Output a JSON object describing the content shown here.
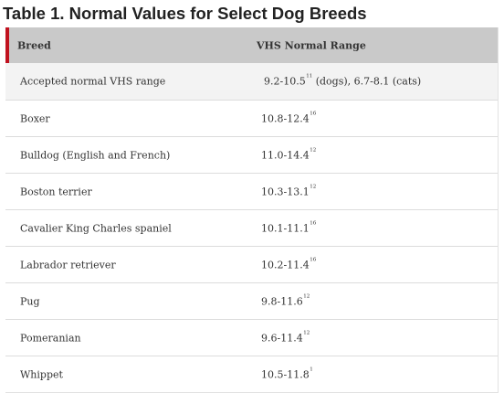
{
  "caption": "Table 1. Normal Values for Select Dog Breeds",
  "headers": {
    "breed": "Breed",
    "range": "VHS Normal Range"
  },
  "accent_color": "#c0121f",
  "rows": [
    {
      "breed": "Accepted normal VHS range",
      "range": "9.2-10.5",
      "ref": "11",
      "suffix": " (dogs), 6.7-8.1 (cats)"
    },
    {
      "breed": "Boxer",
      "range": "10.8-12.4",
      "ref": "16",
      "suffix": ""
    },
    {
      "breed": "Bulldog (English and French)",
      "range": "11.0-14.4",
      "ref": "12",
      "suffix": ""
    },
    {
      "breed": "Boston terrier",
      "range": "10.3-13.1",
      "ref": "12",
      "suffix": ""
    },
    {
      "breed": "Cavalier King Charles spaniel",
      "range": "10.1-11.1",
      "ref": "16",
      "suffix": ""
    },
    {
      "breed": "Labrador retriever",
      "range": "10.2-11.4",
      "ref": "16",
      "suffix": ""
    },
    {
      "breed": "Pug",
      "range": "9.8-11.6",
      "ref": "12",
      "suffix": ""
    },
    {
      "breed": "Pomeranian",
      "range": "9.6-11.4",
      "ref": "12",
      "suffix": ""
    },
    {
      "breed": "Whippet",
      "range": "10.5-11.8",
      "ref": "1",
      "suffix": ""
    }
  ]
}
